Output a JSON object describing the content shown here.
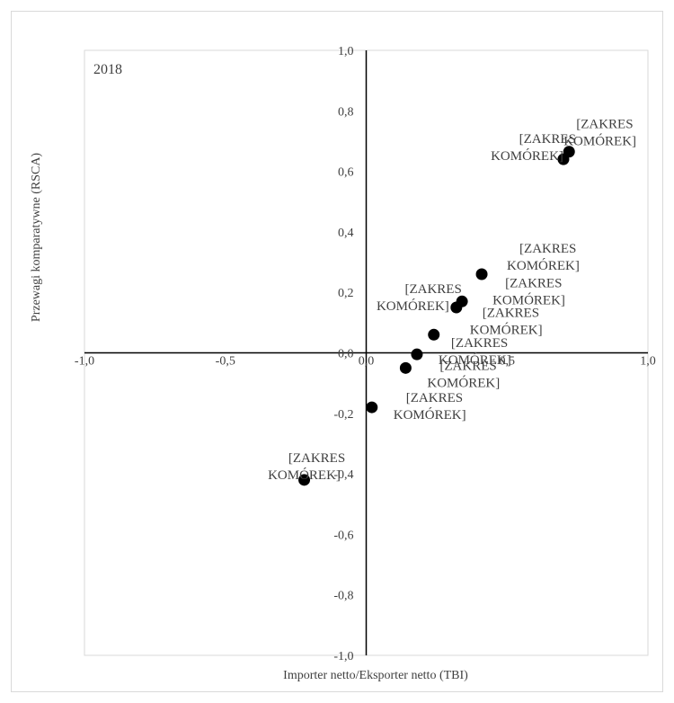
{
  "chart_data": {
    "type": "scatter",
    "year_label": "2018",
    "xlabel": "Importer netto/Eksporter netto (TBI)",
    "ylabel": "Przewagi komparatywne (RSCA)",
    "xlim": [
      -1.0,
      1.0
    ],
    "ylim": [
      -1.0,
      1.0
    ],
    "x_ticks": [
      "-1,0",
      "-0,5",
      "0,0",
      "0,5",
      "1,0"
    ],
    "y_ticks": [
      "1,0",
      "0,8",
      "0,6",
      "0,4",
      "0,2",
      "0,0",
      "-0,2",
      "-0,4",
      "-0,6",
      "-0,8",
      "-1,0"
    ],
    "points": [
      {
        "x": 0.72,
        "y": 0.665,
        "label": "[ZAKRES KOMÓREK]"
      },
      {
        "x": 0.7,
        "y": 0.64,
        "label": "[ZAKRES KOMÓREK]"
      },
      {
        "x": 0.41,
        "y": 0.26,
        "label": "[ZAKRES KOMÓREK]"
      },
      {
        "x": 0.34,
        "y": 0.17,
        "label": "[ZAKRES KOMÓREK]"
      },
      {
        "x": 0.32,
        "y": 0.15,
        "label": "[ZAKRES KOMÓREK]"
      },
      {
        "x": 0.24,
        "y": 0.06,
        "label": "[ZAKRES KOMÓREK]"
      },
      {
        "x": 0.18,
        "y": -0.005,
        "label": "[ZAKRES KOMÓREK]"
      },
      {
        "x": 0.14,
        "y": -0.05,
        "label": "[ZAKRES KOMÓREK]"
      },
      {
        "x": 0.02,
        "y": -0.18,
        "label": "[ZAKRES KOMÓREK]"
      },
      {
        "x": -0.22,
        "y": -0.42,
        "label": "[ZAKRES KOMÓREK]"
      }
    ],
    "marker_color": "#000000",
    "grid": false
  }
}
